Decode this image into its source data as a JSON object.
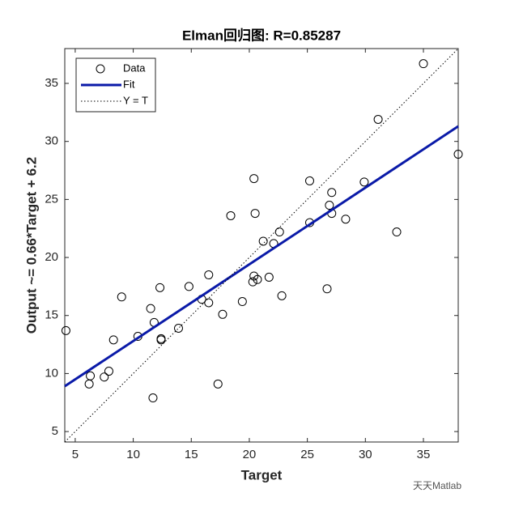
{
  "chart_data": {
    "type": "scatter",
    "title": "Elman回归图: R=0.85287",
    "xlabel": "Target",
    "ylabel": "Output ~= 0.66*Target + 6.2",
    "xlim": [
      4.1,
      38
    ],
    "ylim": [
      4.1,
      38
    ],
    "xticks": [
      5,
      10,
      15,
      20,
      25,
      30,
      35
    ],
    "yticks": [
      5,
      10,
      15,
      20,
      25,
      30,
      35
    ],
    "legend": "upper left",
    "watermark": "天天Matlab",
    "series": [
      {
        "name": "Data",
        "color": "#000000",
        "style": "circle",
        "x": [
          4.2,
          6.2,
          6.3,
          7.5,
          7.9,
          8.3,
          9.0,
          10.4,
          11.5,
          11.7,
          11.8,
          12.3,
          12.4,
          12.4,
          13.9,
          14.8,
          15.9,
          16.5,
          16.5,
          17.3,
          17.7,
          18.4,
          19.4,
          20.3,
          20.4,
          20.4,
          20.5,
          20.7,
          21.2,
          21.7,
          22.1,
          22.6,
          22.8,
          25.2,
          25.2,
          26.7,
          26.9,
          27.1,
          27.1,
          28.3,
          29.9,
          31.1,
          32.7,
          35.0,
          38.0
        ],
        "values": [
          13.7,
          9.1,
          9.8,
          9.7,
          10.2,
          12.9,
          16.6,
          13.2,
          15.6,
          7.9,
          14.4,
          17.4,
          13.0,
          12.9,
          13.9,
          17.5,
          16.4,
          16.1,
          18.5,
          9.1,
          15.1,
          23.6,
          16.2,
          17.9,
          18.4,
          26.8,
          23.8,
          18.1,
          21.4,
          18.3,
          21.2,
          22.2,
          16.7,
          26.6,
          23.0,
          17.3,
          24.5,
          25.6,
          23.8,
          23.3,
          26.5,
          31.9,
          22.2,
          36.7,
          28.9
        ]
      },
      {
        "name": "Fit",
        "color": "#0a1aa8",
        "style": "solid",
        "x": [
          4.1,
          38
        ],
        "values": [
          8.9,
          31.3
        ]
      },
      {
        "name": "Y = T",
        "color": "#000000",
        "style": "dotted",
        "x": [
          4.1,
          38
        ],
        "values": [
          4.1,
          38
        ]
      }
    ]
  }
}
